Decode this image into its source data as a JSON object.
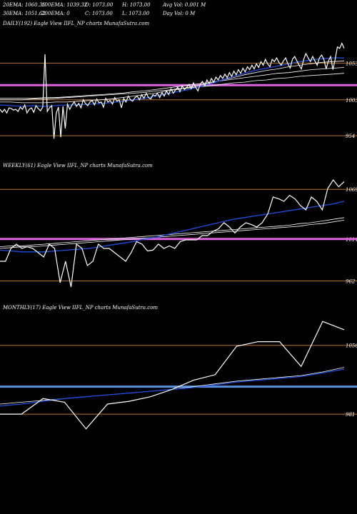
{
  "header": {
    "row1": [
      "20EMA: 1060.36",
      "100EMA: 1039.32",
      "O: 1073.00",
      "H: 1073.00",
      "Avg Vol: 0.001 M"
    ],
    "row2": [
      "30EMA: 1051.62",
      "200EMA: 0",
      "C: 1073.00",
      "L: 1073.00",
      "Day Vol: 0  M"
    ]
  },
  "panels": [
    {
      "title": "DAILY(192) Eagle   View  IIFL_NP charts MunafaSutra.com"
    },
    {
      "title": "WEEKLY(61) Eagle   View  IIFL_NP charts MunafaSutra.com"
    },
    {
      "title": "MONTHLY(17) Eagle   View  IIFL_NP charts MunafaSutra.com"
    }
  ],
  "chart_data": [
    {
      "type": "line",
      "title": "DAILY(192) Eagle   View  IIFL_NP charts MunafaSutra.com",
      "levels": [
        1053,
        1003,
        954
      ],
      "highlight_level": 1023,
      "ylim": [
        925,
        1100
      ],
      "colors": {
        "price": "#ffffff",
        "ema_fast": "#1f4fe0",
        "ema_slow": "#ffffff",
        "level_line": "#b8742c",
        "highlight": "#e060e0"
      },
      "series": [
        {
          "values": [
            990,
            986,
            990,
            985,
            992,
            991,
            989,
            990,
            987,
            993,
            990,
            996,
            985,
            990,
            992,
            986,
            995,
            991,
            988,
            993,
            1065,
            987,
            992,
            995,
            950,
            985,
            993,
            952,
            994,
            964,
            997,
            990,
            996,
            1000,
            994,
            998,
            992,
            1003,
            998,
            995,
            1000,
            1002,
            996,
            1004,
            999,
            1000,
            993,
            1005,
            1000,
            1002,
            997,
            1006,
            1001,
            1003,
            992,
            1005,
            1000,
            1008,
            1003,
            1001,
            1006,
            1008,
            1003,
            1010,
            1005,
            1012,
            1006,
            1004,
            1010,
            1008,
            1012,
            1006,
            1013,
            1008,
            1015,
            1010,
            1018,
            1012,
            1016,
            1020,
            1014,
            1022,
            1017,
            1020,
            1024,
            1018,
            1026,
            1020,
            1015,
            1024,
            1028,
            1022,
            1030,
            1025,
            1032,
            1027,
            1034,
            1030,
            1036,
            1032,
            1038,
            1033,
            1040,
            1035,
            1042,
            1037,
            1044,
            1039,
            1046,
            1041,
            1048,
            1044,
            1050,
            1045,
            1052,
            1047,
            1055,
            1050,
            1058,
            1052,
            1048,
            1058,
            1055,
            1060,
            1054,
            1050,
            1056,
            1060,
            1052,
            1046,
            1058,
            1062,
            1056,
            1050,
            1045,
            1058,
            1066,
            1060,
            1055,
            1062,
            1056,
            1050,
            1060,
            1064,
            1058,
            1045,
            1056,
            1062,
            1044,
            1058,
            1075,
            1073,
            1080,
            1073
          ]
        },
        {
          "values": [
            996,
            995,
            994,
            995,
            994,
            995,
            996,
            996,
            997,
            998,
            999,
            1001,
            1003,
            1005,
            1008,
            1011,
            1014,
            1017,
            1021,
            1025,
            1030,
            1035,
            1039,
            1043,
            1046,
            1049,
            1052,
            1055,
            1057,
            1059,
            1060,
            1060
          ]
        },
        {
          "values": [
            1000,
            1000,
            999,
            999,
            999,
            1000,
            1000,
            1001,
            1002,
            1003,
            1004,
            1006,
            1008,
            1010,
            1012,
            1015,
            1017,
            1020,
            1023,
            1026,
            1030,
            1033,
            1037,
            1040,
            1043,
            1045,
            1048,
            1050,
            1052,
            1054,
            1055,
            1056
          ]
        },
        {
          "values": [
            1005,
            1005,
            1005,
            1005,
            1006,
            1006,
            1007,
            1008,
            1009,
            1010,
            1011,
            1012,
            1014,
            1015,
            1017,
            1019,
            1021,
            1023,
            1025,
            1027,
            1029,
            1031,
            1033,
            1035,
            1037,
            1039,
            1040,
            1042,
            1044,
            1045,
            1046,
            1047
          ]
        },
        {
          "values": [
            1003,
            1003,
            1003,
            1004,
            1004,
            1005,
            1006,
            1007,
            1008,
            1009,
            1010,
            1011,
            1012,
            1013,
            1015,
            1016,
            1018,
            1019,
            1021,
            1022,
            1024,
            1026,
            1027,
            1029,
            1030,
            1032,
            1033,
            1035,
            1036,
            1037,
            1038,
            1039
          ]
        }
      ]
    },
    {
      "type": "line",
      "title": "WEEKLY(61) Eagle   View  IIFL_NP charts MunafaSutra.com",
      "levels": [
        1069,
        1011,
        962
      ],
      "highlight_level": 1011,
      "ylim": [
        940,
        1090
      ],
      "colors": {
        "price": "#ffffff",
        "ema_fast": "#1f4fe0",
        "ema_slow": "#ffffff",
        "level_line": "#b8742c",
        "highlight": "#e060e0"
      },
      "series": [
        {
          "values": [
            985,
            985,
            1000,
            1005,
            1000,
            1002,
            1000,
            995,
            990,
            1005,
            1000,
            960,
            985,
            955,
            1005,
            1000,
            980,
            985,
            1005,
            1000,
            1000,
            995,
            990,
            985,
            995,
            1008,
            1005,
            997,
            998,
            1005,
            1000,
            1003,
            1000,
            1008,
            1010,
            1010,
            1010,
            1015,
            1015,
            1020,
            1023,
            1030,
            1025,
            1018,
            1025,
            1030,
            1028,
            1025,
            1030,
            1040,
            1060,
            1058,
            1055,
            1062,
            1058,
            1050,
            1045,
            1060,
            1055,
            1045,
            1070,
            1080,
            1072,
            1078
          ]
        },
        {
          "values": [
            998,
            997,
            996,
            996,
            996,
            997,
            998,
            999,
            1000,
            1002,
            1004,
            1006,
            1008,
            1011,
            1013,
            1016,
            1019,
            1022,
            1025,
            1028,
            1031,
            1034,
            1036,
            1038,
            1040,
            1042,
            1044,
            1046,
            1048,
            1050,
            1052,
            1055
          ]
        },
        {
          "values": [
            1002,
            1003,
            1003,
            1004,
            1005,
            1006,
            1007,
            1008,
            1009,
            1010,
            1011,
            1012,
            1013,
            1014,
            1015,
            1016,
            1017,
            1018,
            1019,
            1020,
            1021,
            1022,
            1023,
            1024,
            1025,
            1026,
            1027,
            1029,
            1030,
            1032,
            1034,
            1036
          ]
        },
        {
          "values": [
            1000,
            1001,
            1002,
            1002,
            1003,
            1004,
            1005,
            1006,
            1007,
            1008,
            1009,
            1010,
            1011,
            1012,
            1013,
            1014,
            1015,
            1016,
            1017,
            1018,
            1019,
            1020,
            1021,
            1022,
            1023,
            1024,
            1025,
            1026,
            1028,
            1029,
            1031,
            1033
          ]
        }
      ]
    },
    {
      "type": "line",
      "title": "MONTHLY(17) Eagle   View  IIFL_NP charts MunafaSutra.com",
      "levels": [
        1056,
        981
      ],
      "highlight_level": 1011,
      "ylim": [
        950,
        1090
      ],
      "colors": {
        "price": "#ffffff",
        "ema_fast": "#1f4fe0",
        "ema_slow": "#ffffff",
        "level_line": "#b8742c",
        "highlight": "#5a8fe0"
      },
      "series": [
        {
          "values": [
            981,
            981,
            998,
            994,
            965,
            992,
            995,
            1000,
            1008,
            1018,
            1024,
            1055,
            1060,
            1060,
            1033,
            1082,
            1073
          ]
        },
        {
          "values": [
            990,
            992,
            995,
            998,
            1000,
            1002,
            1004,
            1006,
            1008,
            1010,
            1013,
            1016,
            1018,
            1020,
            1022,
            1026,
            1030
          ]
        },
        {
          "values": [
            992,
            994,
            996,
            998,
            1000,
            1002,
            1004,
            1006,
            1008,
            1011,
            1014,
            1017,
            1019,
            1021,
            1023,
            1027,
            1032
          ]
        }
      ]
    }
  ]
}
